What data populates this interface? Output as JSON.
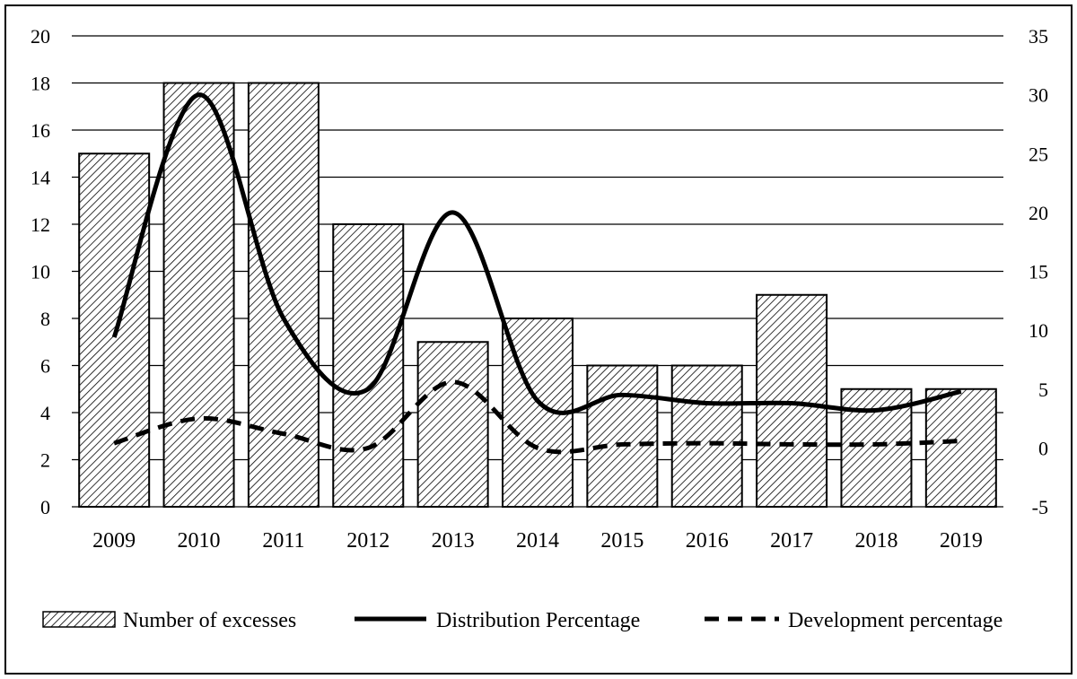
{
  "chart_data": {
    "type": "bar+line",
    "categories": [
      "2009",
      "2010",
      "2011",
      "2012",
      "2013",
      "2014",
      "2015",
      "2016",
      "2017",
      "2018",
      "2019"
    ],
    "series": [
      {
        "name": "Number of excesses",
        "type": "bar",
        "axis": "left",
        "values": [
          15,
          18,
          18,
          12,
          7,
          8,
          6,
          6,
          9,
          5,
          5
        ]
      },
      {
        "name": "Distribution Percentage",
        "type": "line",
        "axis": "right",
        "style": "solid",
        "values": [
          9.4,
          30.0,
          11.0,
          5.0,
          20.0,
          4.0,
          4.5,
          3.8,
          3.8,
          3.2,
          4.8
        ]
      },
      {
        "name": "Development percentage",
        "type": "line",
        "axis": "right",
        "style": "dashed",
        "values": [
          0.4,
          2.5,
          1.2,
          0.0,
          5.6,
          0.0,
          0.3,
          0.4,
          0.3,
          0.3,
          0.6
        ]
      }
    ],
    "y_left": {
      "min": 0,
      "max": 20,
      "ticks": [
        "0",
        "2",
        "4",
        "6",
        "8",
        "10",
        "12",
        "14",
        "16",
        "18",
        "20"
      ]
    },
    "y_right": {
      "min": -5,
      "max": 35,
      "ticks": [
        "-5",
        "0",
        "5",
        "10",
        "15",
        "20",
        "25",
        "30",
        "35"
      ]
    },
    "grid": true,
    "legend_position": "bottom",
    "colors": {
      "bar_fill": "#ffffff",
      "hatch": "#000000",
      "line": "#000000"
    }
  }
}
